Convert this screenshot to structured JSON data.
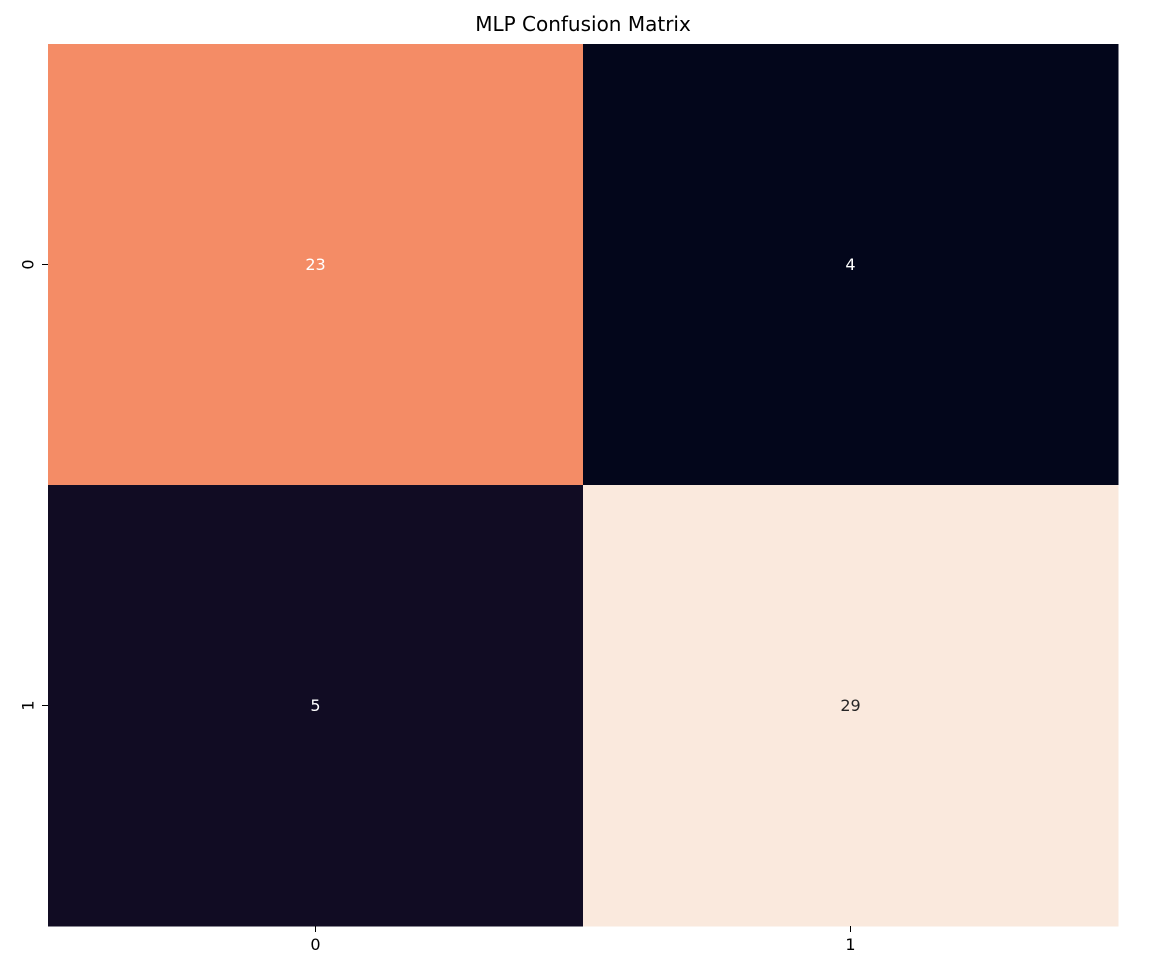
{
  "chart_data": {
    "type": "heatmap",
    "title": "MLP Confusion Matrix",
    "xlabel": "",
    "ylabel": "",
    "x_categories": [
      "0",
      "1"
    ],
    "y_categories": [
      "0",
      "1"
    ],
    "matrix": [
      [
        23,
        4
      ],
      [
        5,
        29
      ]
    ],
    "cell_labels": [
      [
        "23",
        "4"
      ],
      [
        "5",
        "29"
      ]
    ],
    "colormap": "rocket",
    "cell_colors": [
      [
        "#f48c66",
        "#03061b"
      ],
      [
        "#110c23",
        "#fae9dd"
      ]
    ],
    "text_colors": [
      [
        "#ffffff",
        "#ffffff"
      ],
      [
        "#ffffff",
        "#262626"
      ]
    ],
    "colorbar": false,
    "grid": false
  }
}
